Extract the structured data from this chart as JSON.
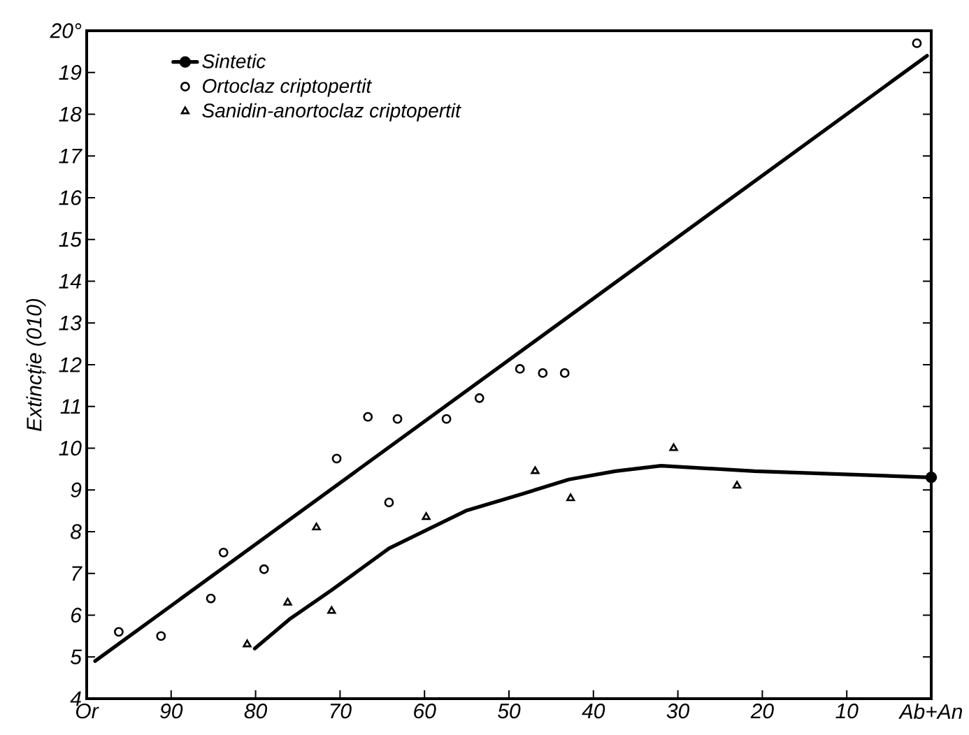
{
  "chart_data": {
    "type": "scatter",
    "ylabel": "Extincție (010)",
    "xlim": [
      100,
      0
    ],
    "ylim": [
      4,
      20
    ],
    "xticks": [
      {
        "value": 100,
        "label": "Or"
      },
      90,
      80,
      70,
      60,
      50,
      40,
      30,
      20,
      10,
      {
        "value": 0,
        "label": "Ab+An"
      }
    ],
    "yticks": [
      4,
      5,
      6,
      7,
      8,
      9,
      10,
      11,
      12,
      13,
      14,
      15,
      16,
      17,
      18,
      19,
      {
        "value": 20,
        "label": "20°"
      }
    ],
    "grid": false,
    "legend": "top left",
    "series": [
      {
        "name": "Sintetic",
        "type": "line",
        "marker": "circle",
        "color": "#000000",
        "x": [
          0
        ],
        "values": [
          9.3
        ]
      },
      {
        "name": "Ortoclaz criptopertit",
        "marker": "circle",
        "color": "#000000",
        "x": [
          96.2,
          91.2,
          85.3,
          83.8,
          79.0,
          70.4,
          66.7,
          64.2,
          63.2,
          57.4,
          53.5,
          48.7,
          46.0,
          43.4,
          1.7
        ],
        "values": [
          5.6,
          5.5,
          6.4,
          7.5,
          7.1,
          9.75,
          10.75,
          8.7,
          10.7,
          10.7,
          11.2,
          11.9,
          11.8,
          11.8,
          19.7
        ]
      },
      {
        "name": "Sanidin-anortoclaz criptopertit",
        "marker": "triangle",
        "color": "#000000",
        "x": [
          81.0,
          76.2,
          72.8,
          71.0,
          59.8,
          46.9,
          42.7,
          30.5,
          23.0
        ],
        "values": [
          5.3,
          6.3,
          8.1,
          6.1,
          8.35,
          9.45,
          8.8,
          10.0,
          9.1
        ]
      },
      {
        "type": "line",
        "marker": "none",
        "color": "#000000",
        "x": [
          99,
          0.5
        ],
        "values": [
          4.9,
          19.4
        ]
      },
      {
        "type": "line",
        "marker": "none",
        "color": "#000000",
        "x": [
          80.1,
          76,
          71,
          64.2,
          55.1,
          48.5,
          42.9,
          37.4,
          32,
          20.9,
          0
        ],
        "values": [
          5.2,
          5.9,
          6.6,
          7.6,
          8.5,
          8.9,
          9.25,
          9.45,
          9.58,
          9.45,
          9.3
        ]
      }
    ]
  }
}
